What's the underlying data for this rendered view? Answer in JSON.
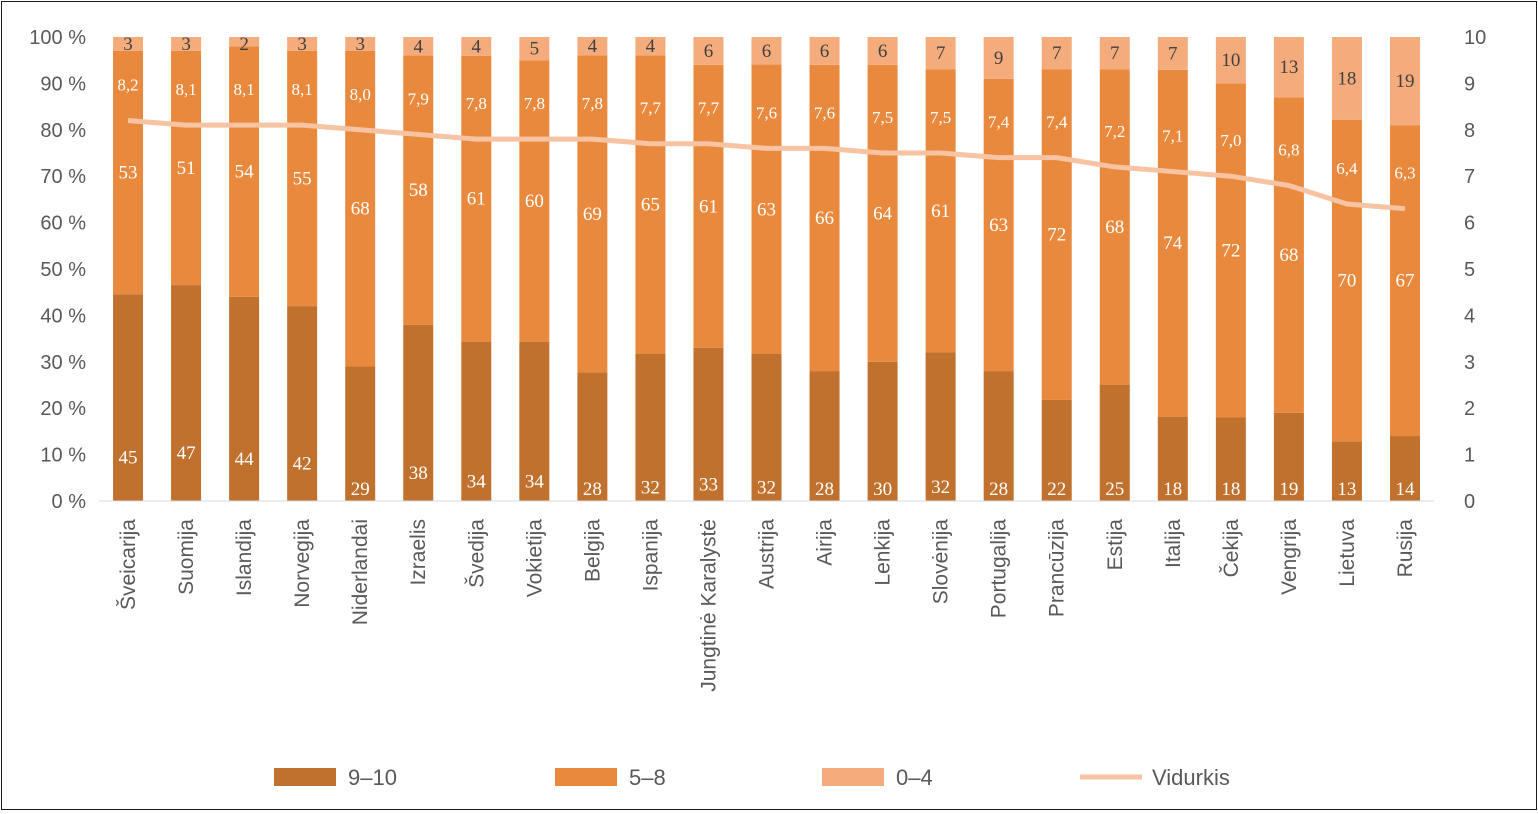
{
  "chart_data": {
    "type": "bar",
    "stacked": true,
    "categories": [
      "Šveicarija",
      "Suomija",
      "Islandija",
      "Norvegija",
      "Niderlandai",
      "Izraelis",
      "Švedija",
      "Vokietija",
      "Belgija",
      "Ispanija",
      "Jungtinė Karalystė",
      "Austrija",
      "Airija",
      "Lenkija",
      "Slovėnija",
      "Portugalija",
      "Prancūzija",
      "Estija",
      "Italija",
      "Čekija",
      "Vengrija",
      "Lietuva",
      "Rusija"
    ],
    "series": [
      {
        "name": "9–10",
        "color": "#c0712e",
        "values": [
          45,
          47,
          44,
          42,
          29,
          38,
          34,
          34,
          28,
          32,
          33,
          32,
          28,
          30,
          32,
          28,
          22,
          25,
          18,
          18,
          19,
          13,
          14
        ]
      },
      {
        "name": "5–8",
        "color": "#e8893d",
        "values": [
          53,
          51,
          54,
          55,
          68,
          58,
          61,
          60,
          69,
          65,
          61,
          63,
          66,
          64,
          61,
          63,
          72,
          68,
          74,
          72,
          68,
          70,
          67
        ]
      },
      {
        "name": "0–4",
        "color": "#f4ac7d",
        "values": [
          3,
          3,
          2,
          3,
          3,
          4,
          4,
          5,
          4,
          4,
          6,
          6,
          6,
          6,
          7,
          9,
          7,
          7,
          7,
          10,
          13,
          18,
          19
        ]
      }
    ],
    "line": {
      "name": "Vidurkis",
      "color": "#f7c3a3",
      "axis": "right",
      "values": [
        8.2,
        8.1,
        8.1,
        8.1,
        8.0,
        7.9,
        7.8,
        7.8,
        7.8,
        7.7,
        7.7,
        7.6,
        7.6,
        7.5,
        7.5,
        7.4,
        7.4,
        7.2,
        7.1,
        7.0,
        6.8,
        6.4,
        6.3
      ],
      "labels": [
        "8,2",
        "8,1",
        "8,1",
        "8,1",
        "8,0",
        "7,9",
        "7,8",
        "7,8",
        "7,8",
        "7,7",
        "7,7",
        "7,6",
        "7,6",
        "7,5",
        "7,5",
        "7,4",
        "7,4",
        "7,2",
        "7,1",
        "7,0",
        "6,8",
        "6,4",
        "6,3"
      ]
    },
    "y_left": {
      "ylim": [
        0,
        100
      ],
      "ticks": [
        "0 %",
        "10 %",
        "20 %",
        "30 %",
        "40 %",
        "50 %",
        "60 %",
        "70 %",
        "80 %",
        "90 %",
        "100 %"
      ]
    },
    "y_right": {
      "ylim": [
        0,
        10
      ],
      "ticks": [
        "0",
        "1",
        "2",
        "3",
        "4",
        "5",
        "6",
        "7",
        "8",
        "9",
        "10"
      ]
    },
    "legend_position": "bottom",
    "grid": false
  }
}
